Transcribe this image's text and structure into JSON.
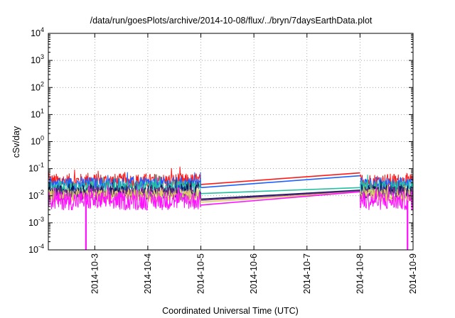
{
  "chart_data": {
    "type": "line",
    "title": "/data/run/goesPlots/archive/2014-10-08/flux/../bryn/7daysEarthData.plot",
    "xlabel": "Coordinated Universal Time (UTC)",
    "ylabel": "cSv/day",
    "yscale": "log",
    "ylim": [
      0.0001,
      10000
    ],
    "xlim": [
      "2014-10-02T03:00",
      "2014-10-09T00:00"
    ],
    "grid": true,
    "legend": "none",
    "y_ticks": [
      {
        "value": 0.0001,
        "base": "10",
        "exp": "-4"
      },
      {
        "value": 0.001,
        "base": "10",
        "exp": "-3"
      },
      {
        "value": 0.01,
        "base": "10",
        "exp": "-2"
      },
      {
        "value": 0.1,
        "base": "10",
        "exp": "-1"
      },
      {
        "value": 1,
        "base": "10",
        "exp": "0"
      },
      {
        "value": 10,
        "base": "10",
        "exp": "1"
      },
      {
        "value": 100,
        "base": "10",
        "exp": "2"
      },
      {
        "value": 1000,
        "base": "10",
        "exp": "3"
      },
      {
        "value": 10000,
        "base": "10",
        "exp": "4"
      }
    ],
    "x_ticks": [
      "2014-10-3",
      "2014-10-4",
      "2014-10-5",
      "2014-10-6",
      "2014-10-7",
      "2014-10-8",
      "2014-10-9"
    ],
    "gap": {
      "start": "2014-10-05T00:00",
      "end": "2014-10-08T00:00"
    },
    "series": [
      {
        "color": "#ff1a1a",
        "noisy_median": 0.035,
        "noisy_spread": 0.28,
        "gap_start": 0.026,
        "gap_end": 0.07
      },
      {
        "color": "#1f5fff",
        "noisy_median": 0.028,
        "noisy_spread": 0.25,
        "gap_start": 0.02,
        "gap_end": 0.055
      },
      {
        "color": "#20c0a0",
        "noisy_median": 0.02,
        "noisy_spread": 0.25,
        "gap_start": 0.012,
        "gap_end": 0.02
      },
      {
        "color": "#0a1a5a",
        "noisy_median": 0.014,
        "noisy_spread": 0.25,
        "gap_start": 0.0075,
        "gap_end": 0.016
      },
      {
        "color": "#7a2a8a",
        "noisy_median": 0.012,
        "noisy_spread": 0.25,
        "gap_start": 0.0068,
        "gap_end": 0.015
      },
      {
        "color": "#e0d060",
        "noisy_median": 0.01,
        "noisy_spread": 0.25,
        "gap_start": 0.0058,
        "gap_end": 0.014
      },
      {
        "color": "#ff10ff",
        "noisy_median": 0.0065,
        "noisy_spread": 0.35,
        "gap_start": 0.0045,
        "gap_end": 0.014
      }
    ],
    "dropouts": [
      {
        "time": "2014-10-02T20:00",
        "value": 0.0001
      },
      {
        "time": "2014-10-08T21:30",
        "value": 0.0001
      }
    ]
  }
}
